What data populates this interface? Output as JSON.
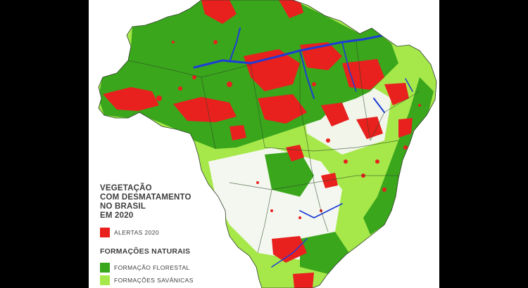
{
  "colors": {
    "page_background": "#000000",
    "map_background": "#ffffff",
    "forest": "#3aa61c",
    "savanna": "#a6e84a",
    "alerts": "#e8201e",
    "water": "#1e3cd6",
    "boundaries": "#2d4a2a"
  },
  "legend": {
    "title_lines": [
      "VEGETAÇÃO",
      "COM DESMATAMENTO",
      "NO BRASIL",
      "EM 2020"
    ],
    "alerts_label": "ALERTAS 2020",
    "section_title": "FORMAÇÕES NATURAIS",
    "forest_label": "FORMAÇÃO FLORESTAL",
    "savanna_label": "FORMAÇÕES SAVÂNICAS"
  }
}
